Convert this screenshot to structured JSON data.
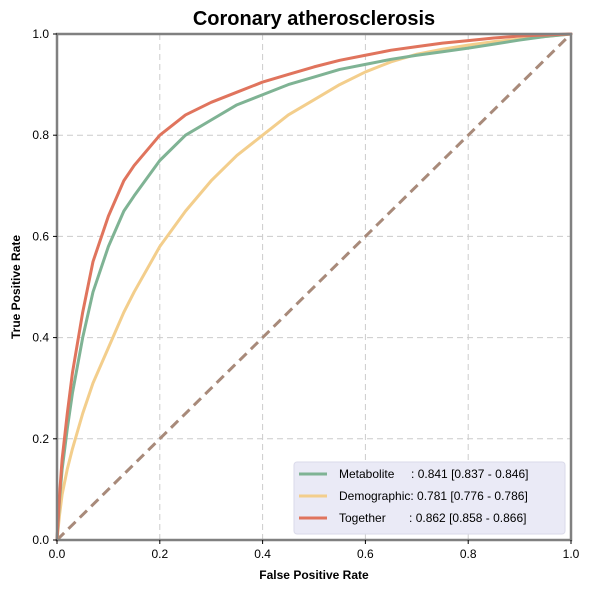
{
  "chart_data": {
    "type": "line",
    "title": "Coronary atherosclerosis",
    "xlabel": "False Positive Rate",
    "ylabel": "True Positive Rate",
    "xlim": [
      0.0,
      1.0
    ],
    "ylim": [
      0.0,
      1.0
    ],
    "x_ticks": [
      "0.0",
      "0.2",
      "0.4",
      "0.6",
      "0.8",
      "1.0"
    ],
    "y_ticks": [
      "0.0",
      "0.2",
      "0.4",
      "0.6",
      "0.8",
      "1.0"
    ],
    "grid": true,
    "legend_position": "bottom-right",
    "series": [
      {
        "name": "Metabolite",
        "label": "Metabolite     : 0.841 [0.837 - 0.846]",
        "color": "#7fb394",
        "x": [
          0,
          0.005,
          0.01,
          0.02,
          0.03,
          0.05,
          0.07,
          0.1,
          0.13,
          0.15,
          0.2,
          0.25,
          0.3,
          0.35,
          0.4,
          0.45,
          0.5,
          0.55,
          0.6,
          0.65,
          0.7,
          0.75,
          0.8,
          0.85,
          0.9,
          0.95,
          1.0
        ],
        "y": [
          0,
          0.08,
          0.14,
          0.22,
          0.29,
          0.4,
          0.49,
          0.58,
          0.65,
          0.68,
          0.75,
          0.8,
          0.83,
          0.86,
          0.88,
          0.9,
          0.915,
          0.93,
          0.94,
          0.95,
          0.958,
          0.965,
          0.972,
          0.98,
          0.988,
          0.995,
          1.0
        ]
      },
      {
        "name": "Demographic",
        "label": "Demographic: 0.781 [0.776 - 0.786]",
        "color": "#f3ce8c",
        "x": [
          0,
          0.005,
          0.01,
          0.02,
          0.03,
          0.05,
          0.07,
          0.1,
          0.13,
          0.15,
          0.2,
          0.25,
          0.3,
          0.35,
          0.4,
          0.45,
          0.5,
          0.55,
          0.6,
          0.65,
          0.7,
          0.75,
          0.8,
          0.85,
          0.9,
          0.95,
          1.0
        ],
        "y": [
          0,
          0.05,
          0.09,
          0.14,
          0.18,
          0.25,
          0.31,
          0.38,
          0.45,
          0.49,
          0.58,
          0.65,
          0.71,
          0.76,
          0.8,
          0.84,
          0.87,
          0.9,
          0.925,
          0.945,
          0.96,
          0.97,
          0.978,
          0.985,
          0.99,
          0.995,
          1.0
        ]
      },
      {
        "name": "Together",
        "label": "Together       : 0.862 [0.858 - 0.866]",
        "color": "#e0745d",
        "x": [
          0,
          0.005,
          0.01,
          0.02,
          0.03,
          0.05,
          0.07,
          0.1,
          0.13,
          0.15,
          0.2,
          0.25,
          0.3,
          0.35,
          0.4,
          0.45,
          0.5,
          0.55,
          0.6,
          0.65,
          0.7,
          0.75,
          0.8,
          0.85,
          0.9,
          0.95,
          1.0
        ],
        "y": [
          0,
          0.09,
          0.16,
          0.25,
          0.33,
          0.45,
          0.55,
          0.64,
          0.71,
          0.74,
          0.8,
          0.84,
          0.865,
          0.885,
          0.905,
          0.92,
          0.935,
          0.948,
          0.958,
          0.968,
          0.975,
          0.982,
          0.987,
          0.992,
          0.996,
          0.998,
          1.0
        ]
      }
    ],
    "reference_line": {
      "x": [
        0,
        1
      ],
      "y": [
        0,
        1
      ],
      "color": "#a88a7a",
      "style": "dashed"
    }
  }
}
